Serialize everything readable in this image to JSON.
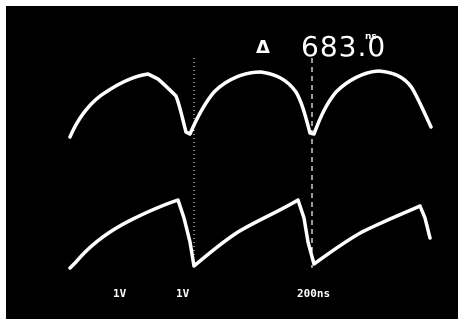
{
  "readout": {
    "delta_symbol": "Δ",
    "time_value": "683.0",
    "time_unit": "ns"
  },
  "scale": {
    "ch1": "1V",
    "ch2": "1V",
    "time": "200ns"
  },
  "colors": {
    "screen": "#000000",
    "trace": "#ffffff"
  }
}
